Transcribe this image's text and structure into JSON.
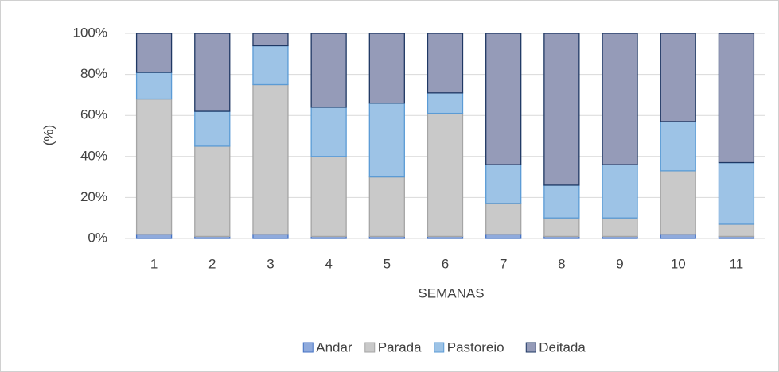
{
  "chart_data": {
    "type": "stacked_bar",
    "categories": [
      "1",
      "2",
      "3",
      "4",
      "5",
      "6",
      "7",
      "8",
      "9",
      "10",
      "11"
    ],
    "series": [
      {
        "name": "Andar",
        "color": "#8faadc",
        "stroke": "#4472c4",
        "values": [
          2,
          1,
          2,
          1,
          1,
          1,
          2,
          1,
          1,
          2,
          1
        ]
      },
      {
        "name": "Parada",
        "color": "#c9c9c9",
        "stroke": "#a5a5a5",
        "values": [
          66,
          44,
          73,
          39,
          29,
          60,
          15,
          9,
          9,
          31,
          6
        ]
      },
      {
        "name": "Pastoreio",
        "color": "#9dc3e6",
        "stroke": "#5b9bd5",
        "values": [
          13,
          17,
          19,
          24,
          36,
          10,
          19,
          16,
          26,
          24,
          30
        ]
      },
      {
        "name": "Deitada",
        "color": "#959bb8",
        "stroke": "#1f3864",
        "values": [
          19,
          38,
          6,
          36,
          34,
          29,
          64,
          74,
          64,
          43,
          63
        ]
      }
    ],
    "ylim": [
      0,
      100
    ],
    "yticks": [
      {
        "value": 0,
        "label": "0%"
      },
      {
        "value": 20,
        "label": "20%"
      },
      {
        "value": 40,
        "label": "40%"
      },
      {
        "value": 60,
        "label": "60%"
      },
      {
        "value": 80,
        "label": "80%"
      },
      {
        "value": 100,
        "label": "100%"
      }
    ],
    "ylabel": "(%)",
    "xlabel": "SEMANAS",
    "grid": true,
    "legend": "bottom"
  }
}
